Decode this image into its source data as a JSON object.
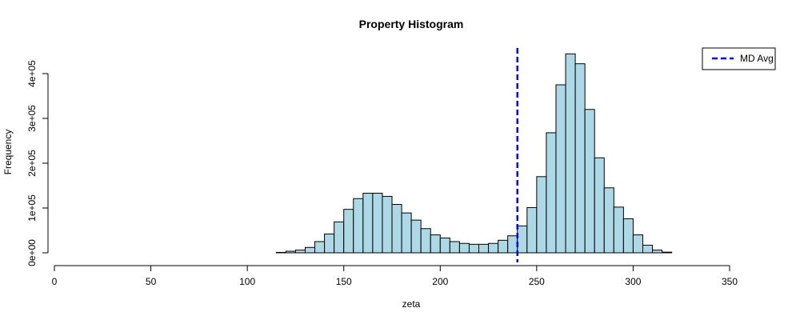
{
  "chart_data": {
    "type": "histogram",
    "title": "Property Histogram",
    "xlabel": "zeta",
    "ylabel": "Frequency",
    "xlim": [
      0,
      360
    ],
    "ylim": [
      0,
      450000
    ],
    "x_ticks": [
      0,
      50,
      100,
      150,
      200,
      250,
      300,
      350
    ],
    "x_tick_labels": [
      "0",
      "50",
      "100",
      "150",
      "200",
      "250",
      "300",
      "350"
    ],
    "y_ticks": [
      0,
      100000,
      200000,
      300000,
      400000
    ],
    "y_tick_labels": [
      "0e+00",
      "1e+05",
      "2e+05",
      "3e+05",
      "4e+05"
    ],
    "bin_width": 5,
    "bin_starts": [
      10,
      15,
      20,
      25,
      30,
      35,
      40,
      45,
      50,
      55,
      60,
      65,
      70,
      75,
      80,
      85,
      90,
      95,
      100,
      105,
      110,
      115,
      120,
      125,
      130,
      135,
      140,
      145,
      150,
      155,
      160,
      165,
      170,
      175,
      180,
      185,
      190,
      195,
      200,
      205,
      210,
      215,
      220,
      225,
      230,
      235,
      240,
      245,
      250,
      255,
      260,
      265,
      270,
      275,
      280,
      285,
      290,
      295,
      300,
      305,
      310,
      315,
      320,
      325,
      330,
      335,
      340,
      345,
      350,
      355
    ],
    "counts": [
      0,
      0,
      0,
      0,
      0,
      0,
      0,
      0,
      0,
      0,
      0,
      0,
      0,
      0,
      0,
      0,
      0,
      0,
      0,
      0,
      0,
      1000,
      3500,
      6000,
      12000,
      25000,
      42000,
      69000,
      97000,
      121000,
      133000,
      133000,
      126000,
      108000,
      89000,
      73000,
      54000,
      40000,
      33000,
      25000,
      21000,
      19000,
      19000,
      21000,
      28000,
      38000,
      60000,
      101000,
      170000,
      268000,
      375000,
      444000,
      422000,
      320000,
      212000,
      145000,
      102000,
      76000,
      40000,
      17000,
      6000,
      1500,
      0,
      0,
      0,
      0,
      0,
      0,
      0,
      0
    ],
    "fill_color": "#add8e6",
    "reference_line": {
      "name": "MD Avg",
      "x": 240,
      "color": "#0000ff",
      "style": "dashed"
    },
    "legend": {
      "position": "top-right",
      "entries": [
        {
          "label": "MD Avg",
          "color": "#0000ff",
          "style": "dashed"
        }
      ]
    }
  }
}
